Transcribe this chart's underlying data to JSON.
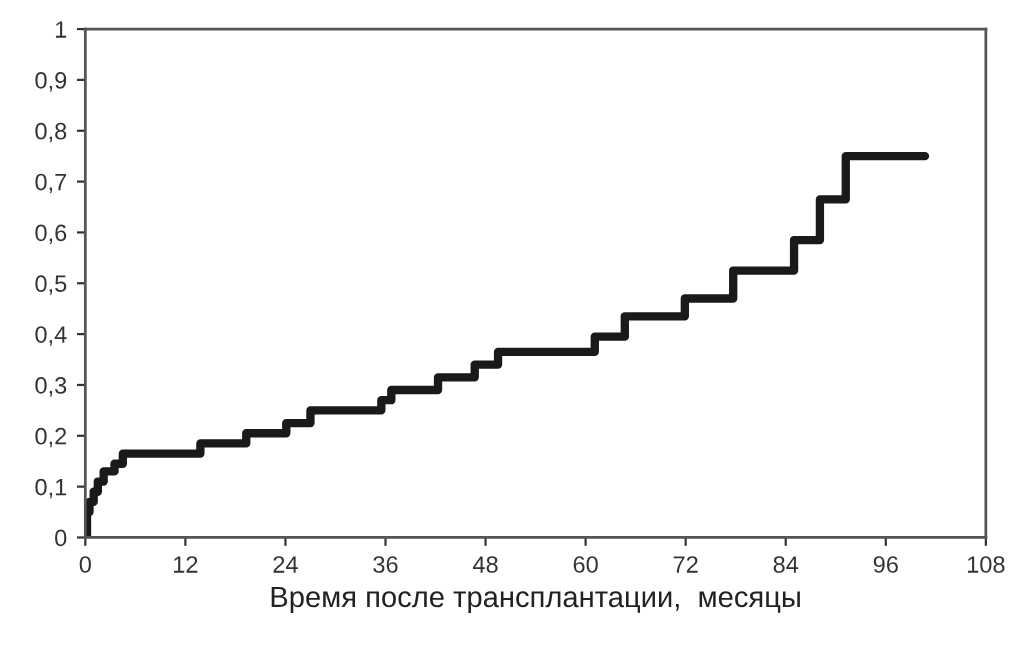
{
  "chart_data": {
    "type": "step",
    "xlabel": "Время после трансплантации,  месяцы",
    "series": [
      {
        "color": "#1a1a1a",
        "x": [
          0,
          0.2,
          0.5,
          1.0,
          1.5,
          2.2,
          3.5,
          4.5,
          13.8,
          19.3,
          24.1,
          27,
          35.5,
          36.7,
          42.3,
          46.7,
          49.5,
          61.1,
          64.7,
          71.9,
          77.7,
          85,
          88.1,
          91.2,
          100.7
        ],
        "values": [
          0,
          0.05,
          0.07,
          0.09,
          0.11,
          0.13,
          0.145,
          0.165,
          0.185,
          0.205,
          0.225,
          0.25,
          0.27,
          0.29,
          0.315,
          0.34,
          0.365,
          0.395,
          0.435,
          0.47,
          0.525,
          0.585,
          0.665,
          0.75,
          0.75
        ]
      }
    ],
    "xlim": [
      0,
      108
    ],
    "xticks": [
      0,
      12,
      24,
      36,
      48,
      60,
      72,
      84,
      96,
      108
    ],
    "ylim": [
      0,
      1
    ],
    "yticks": [
      0,
      {
        "value": 0.1,
        "label": "0,1"
      },
      {
        "value": 0.2,
        "label": "0,2"
      },
      {
        "value": 0.3,
        "label": "0,3"
      },
      {
        "value": 0.4,
        "label": "0,4"
      },
      {
        "value": 0.5,
        "label": "0,5"
      },
      {
        "value": 0.6,
        "label": "0,6"
      },
      {
        "value": 0.7,
        "label": "0,7"
      },
      {
        "value": 0.8,
        "label": "0,8"
      },
      {
        "value": 0.9,
        "label": "0,9"
      },
      1
    ],
    "grid": false,
    "legend": false,
    "line_style": "solid"
  }
}
